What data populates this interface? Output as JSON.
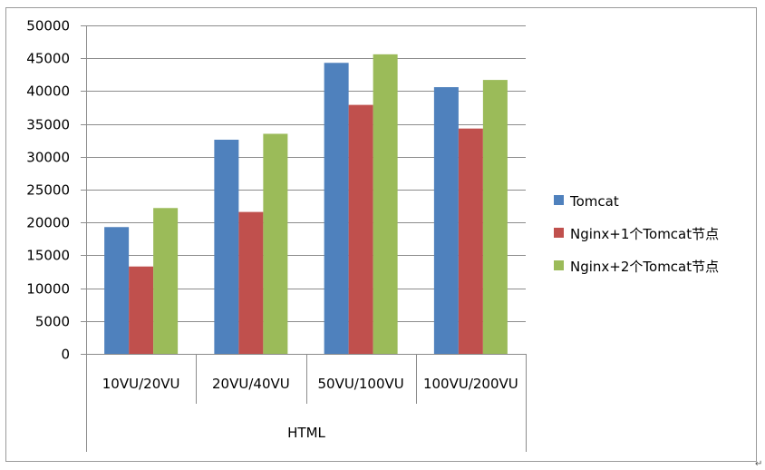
{
  "chart_data": {
    "type": "bar",
    "title": "",
    "xlabel": "",
    "ylabel": "",
    "group_label": "HTML",
    "categories": [
      "10VU/20VU",
      "20VU/40VU",
      "50VU/100VU",
      "100VU/200VU"
    ],
    "series": [
      {
        "name": "Tomcat",
        "color": "#4F81BD",
        "values": [
          19300,
          32600,
          44300,
          40600
        ]
      },
      {
        "name": "Nginx+1个Tomcat节点",
        "color": "#C0504D",
        "values": [
          13300,
          21600,
          37900,
          34300
        ]
      },
      {
        "name": "Nginx+2个Tomcat节点",
        "color": "#9BBB59",
        "values": [
          22200,
          33500,
          45600,
          41700
        ]
      }
    ],
    "ylim": [
      0,
      50000
    ],
    "yticks": [
      0,
      5000,
      10000,
      15000,
      20000,
      25000,
      30000,
      35000,
      40000,
      45000,
      50000
    ],
    "grid": true,
    "legend_position": "right"
  },
  "colors": {
    "gridline": "#8c8c8c",
    "axis": "#8c8c8c",
    "border": "#9a9a9a",
    "text": "#000000"
  },
  "page_marker": "↵"
}
